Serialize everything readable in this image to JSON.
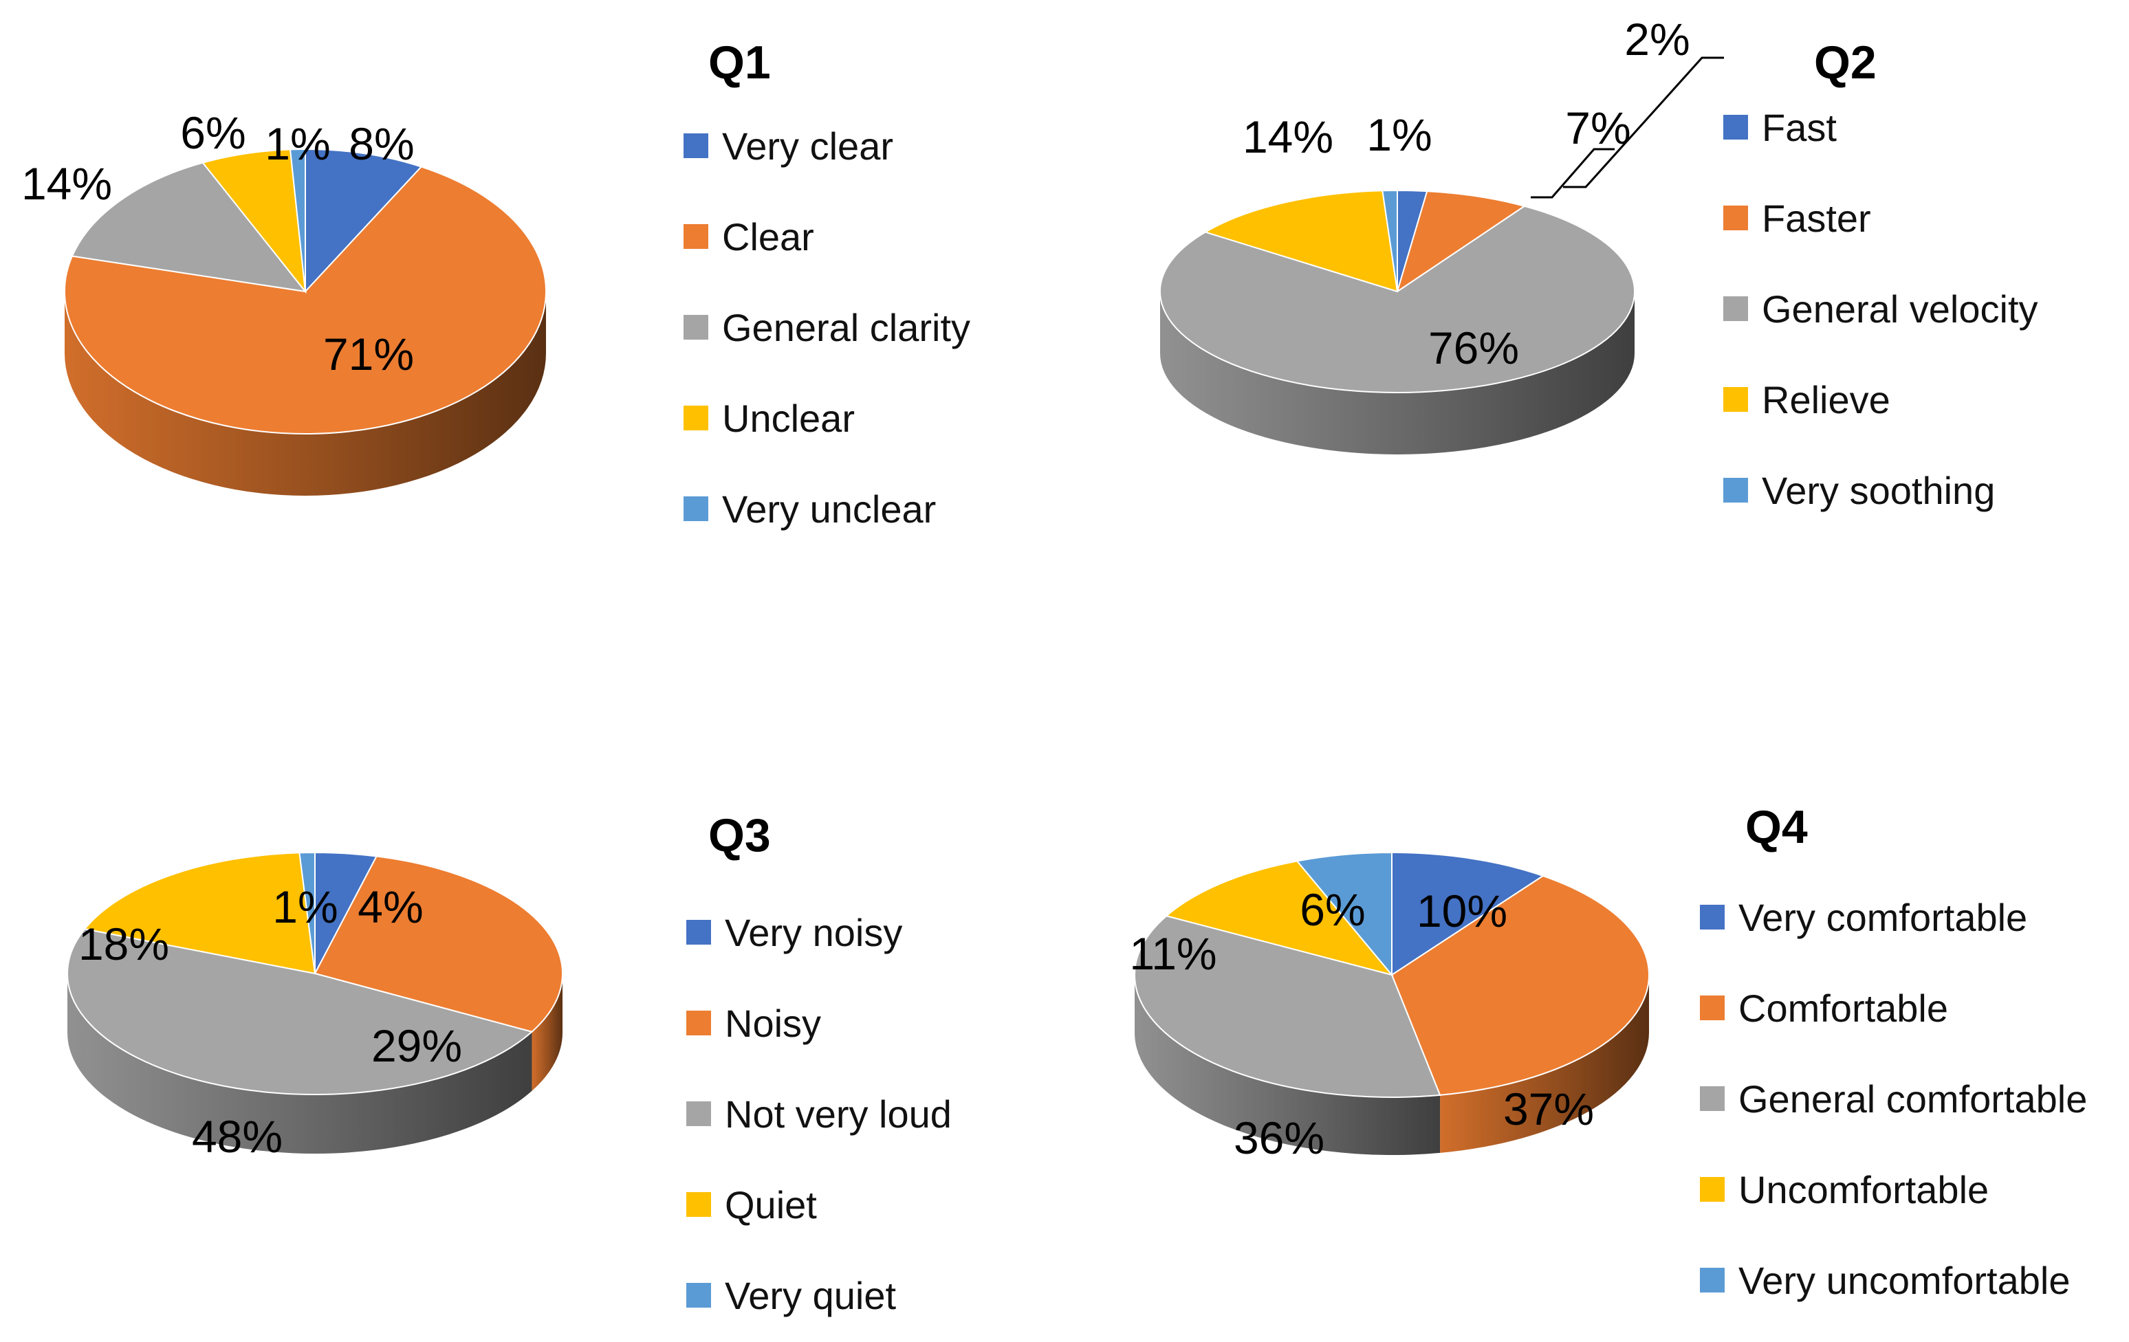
{
  "palette": [
    "#4472C4",
    "#ED7D31",
    "#A5A5A5",
    "#FFC000",
    "#5B9BD5"
  ],
  "chart_data": [
    {
      "type": "pie",
      "title": "Q1",
      "categories": [
        "Very clear",
        "Clear",
        "General clarity",
        "Unclear",
        "Very unclear"
      ],
      "values": [
        8,
        71,
        14,
        6,
        1
      ],
      "labels": [
        "8%",
        "71%",
        "14%",
        "6%",
        "1%"
      ]
    },
    {
      "type": "pie",
      "title": "Q2",
      "categories": [
        "Fast",
        "Faster",
        "General velocity",
        "Relieve",
        "Very soothing"
      ],
      "values": [
        2,
        7,
        76,
        14,
        1
      ],
      "labels": [
        "2%",
        "7%",
        "76%",
        "14%",
        "1%"
      ]
    },
    {
      "type": "pie",
      "title": "Q3",
      "categories": [
        "Very noisy",
        "Noisy",
        "Not very loud",
        "Quiet",
        "Very quiet"
      ],
      "values": [
        4,
        29,
        48,
        18,
        1
      ],
      "labels": [
        "4%",
        "29%",
        "48%",
        "18%",
        "1%"
      ]
    },
    {
      "type": "pie",
      "title": "Q4",
      "categories": [
        "Very comfortable",
        "Comfortable",
        "General comfortable",
        "Uncomfortable",
        "Very uncomfortable"
      ],
      "values": [
        10,
        37,
        36,
        11,
        6
      ],
      "labels": [
        "10%",
        "37%",
        "36%",
        "11%",
        "6%"
      ]
    }
  ]
}
